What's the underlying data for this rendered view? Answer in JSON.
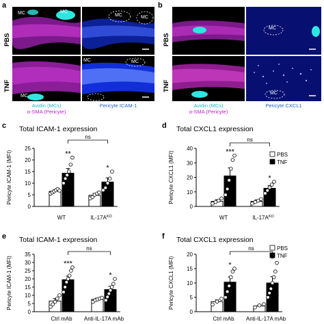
{
  "panel_letters": [
    "a",
    "b",
    "c",
    "d",
    "e",
    "f"
  ],
  "micrographs": {
    "conditions": [
      "PBS",
      "TNF"
    ],
    "mc_label": "MC",
    "a": {
      "left_caption_1": "Avidin (MCs)",
      "left_caption_2": "α-SMA (Pericyte)",
      "right_caption": "Pericyte ICAM-1"
    },
    "b": {
      "left_caption_1": "Avidin (MCs)",
      "left_caption_2": "α-SMA (Pericyte)",
      "right_caption": "Pericyte CXCL1"
    }
  },
  "colors": {
    "magenta": "#c21ec8",
    "cyan": "#2ee6e0",
    "blue": "#1436ff",
    "pbs_fill": "#ffffff",
    "tnf_fill": "#000000"
  },
  "legend": {
    "pbs": "PBS",
    "tnf": "TNF"
  },
  "chart_data": [
    {
      "panel": "c",
      "type": "bar",
      "title": "Total ICAM-1 expression",
      "ylabel": "Pericyte ICAM-1 (MFI)",
      "ylim": [
        0,
        25
      ],
      "yticks": [
        0,
        5,
        10,
        15,
        20,
        25
      ],
      "groups": [
        "WT",
        "IL-17A"
      ],
      "group_superscripts": [
        "",
        "KO"
      ],
      "series": [
        {
          "name": "PBS",
          "values": [
            6.5,
            4.8
          ],
          "errors": [
            0.7,
            0.8
          ],
          "points": [
            [
              5.5,
              6,
              6.5,
              7,
              7.5,
              6.8
            ],
            [
              3.5,
              4,
              5,
              5.5,
              6
            ]
          ]
        },
        {
          "name": "TNF",
          "values": [
            14.3,
            10.5
          ],
          "errors": [
            2.0,
            1.8
          ],
          "points": [
            [
              10,
              12,
              13.5,
              15,
              18,
              21
            ],
            [
              7,
              8,
              10,
              12,
              15
            ]
          ]
        }
      ],
      "stars": [
        "**",
        "*"
      ],
      "comparison": "ns"
    },
    {
      "panel": "d",
      "type": "bar",
      "title": "Total CXCL1 expression",
      "ylabel": "Pericyte CXCL1 (MFI)",
      "ylim": [
        0,
        40
      ],
      "yticks": [
        0,
        10,
        20,
        30,
        40
      ],
      "groups": [
        "WT",
        "IL-17A"
      ],
      "group_superscripts": [
        "",
        "KO"
      ],
      "series": [
        {
          "name": "PBS",
          "values": [
            3.5,
            3.5
          ],
          "errors": [
            1.2,
            1.0
          ],
          "points": [
            [
              2,
              3,
              4,
              5.5
            ],
            [
              2,
              3,
              4,
              5
            ]
          ]
        },
        {
          "name": "TNF",
          "values": [
            21,
            12.5
          ],
          "errors": [
            5.5,
            1.8
          ],
          "points": [
            [
              8,
              12,
              18,
              26,
              32,
              35
            ],
            [
              9,
              11,
              13,
              15,
              17
            ]
          ]
        }
      ],
      "stars": [
        "***",
        "*"
      ],
      "comparison": "ns"
    },
    {
      "panel": "e",
      "type": "bar",
      "title": "Total ICAM-1 expression",
      "ylabel": "Pericyte ICAM-1 (MFI)",
      "ylim": [
        0,
        35
      ],
      "yticks": [
        0,
        5,
        10,
        15,
        20,
        25,
        30,
        35
      ],
      "groups": [
        "Ctrl mAb",
        "Anti-IL-17A mAb"
      ],
      "group_superscripts": [
        "",
        ""
      ],
      "series": [
        {
          "name": "PBS",
          "values": [
            6.5,
            7.5
          ],
          "errors": [
            1.5,
            0.8
          ],
          "points": [
            [
              3,
              4.5,
              6,
              8,
              10
            ],
            [
              6,
              7,
              7.5,
              8,
              8.5
            ]
          ]
        },
        {
          "name": "TNF",
          "values": [
            19.5,
            13.5
          ],
          "errors": [
            2.2,
            2.0
          ],
          "points": [
            [
              12,
              15,
              18,
              20,
              22,
              25,
              27
            ],
            [
              7,
              9,
              11,
              13,
              15,
              17,
              20
            ]
          ]
        }
      ],
      "stars": [
        "***",
        "*"
      ],
      "comparison": "ns"
    },
    {
      "panel": "f",
      "type": "bar",
      "title": "Total CXCL1 expression",
      "ylabel": "Pericyte CXCL1 (MFI)",
      "ylim": [
        0,
        20
      ],
      "yticks": [
        0,
        5,
        10,
        15,
        20
      ],
      "groups": [
        "Ctrl mAb",
        "Anti-IL-17A mAb"
      ],
      "group_superscripts": [
        "",
        ""
      ],
      "series": [
        {
          "name": "PBS",
          "values": [
            3.5,
            2
          ],
          "errors": [
            0.6,
            0.4
          ],
          "points": [
            [
              2.5,
              3.5,
              4.5
            ],
            [
              1.5,
              2.2,
              2.6
            ]
          ]
        },
        {
          "name": "TNF",
          "values": [
            10.3,
            10
          ],
          "errors": [
            1.8,
            2.2
          ],
          "points": [
            [
              5,
              7,
              9,
              12,
              14,
              15
            ],
            [
              5,
              6.5,
              8,
              10,
              12,
              14,
              17
            ]
          ]
        }
      ],
      "stars": [
        "*",
        "*"
      ],
      "comparison": "ns"
    }
  ]
}
